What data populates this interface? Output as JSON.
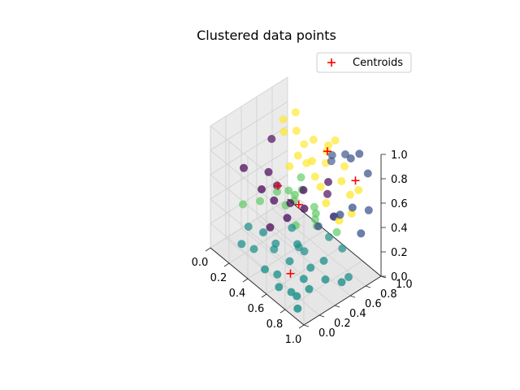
{
  "chart_data": {
    "type": "scatter",
    "dimension": "3d",
    "title": "Clustered data points",
    "xlabel": "",
    "ylabel": "",
    "zlabel": "",
    "xlim": [
      0,
      1
    ],
    "ylim": [
      0,
      1
    ],
    "zlim": [
      0,
      1
    ],
    "x_ticks": [
      "0.0",
      "0.2",
      "0.4",
      "0.6",
      "0.8",
      "1.0"
    ],
    "y_ticks": [
      "0.0",
      "0.2",
      "0.4",
      "0.6",
      "0.8",
      "1.0"
    ],
    "z_ticks": [
      "0.0",
      "0.2",
      "0.4",
      "0.6",
      "0.8",
      "1.0"
    ],
    "grid": true,
    "legend": {
      "placement": "upper right",
      "entries": [
        "Centroids"
      ]
    },
    "colors": {
      "cluster_0": "#440154",
      "cluster_1": "#3b528b",
      "cluster_2": "#21918c",
      "cluster_3": "#5ec962",
      "cluster_4": "#fde725",
      "centroid": "#ff0000"
    },
    "series": [
      {
        "cluster": 0,
        "points": [
          [
            0.15,
            0.25,
            0.65
          ],
          [
            0.2,
            0.55,
            0.8
          ],
          [
            0.25,
            0.45,
            0.6
          ],
          [
            0.3,
            0.3,
            0.55
          ],
          [
            0.35,
            0.4,
            0.45
          ],
          [
            0.4,
            0.55,
            0.4
          ],
          [
            0.45,
            0.45,
            0.35
          ],
          [
            0.35,
            0.35,
            0.25
          ],
          [
            0.5,
            0.6,
            0.55
          ],
          [
            0.55,
            0.55,
            0.45
          ],
          [
            0.6,
            0.8,
            0.6
          ],
          [
            0.3,
            0.5,
            0.5
          ],
          [
            0.55,
            0.85,
            0.45
          ],
          [
            0.7,
            0.75,
            0.4
          ]
        ]
      },
      {
        "cluster": 1,
        "points": [
          [
            0.55,
            0.9,
            0.7
          ],
          [
            0.6,
            0.85,
            0.8
          ],
          [
            0.7,
            0.9,
            0.85
          ],
          [
            0.8,
            0.85,
            0.9
          ],
          [
            0.85,
            0.9,
            0.95
          ],
          [
            0.9,
            0.95,
            0.8
          ],
          [
            0.95,
            0.9,
            0.55
          ],
          [
            0.9,
            0.75,
            0.6
          ],
          [
            0.85,
            0.65,
            0.55
          ],
          [
            0.75,
            0.7,
            0.45
          ],
          [
            0.95,
            0.8,
            0.4
          ],
          [
            0.7,
            0.55,
            0.4
          ]
        ]
      },
      {
        "cluster": 2,
        "points": [
          [
            0.25,
            0.1,
            0.15
          ],
          [
            0.3,
            0.2,
            0.1
          ],
          [
            0.4,
            0.2,
            0.3
          ],
          [
            0.45,
            0.3,
            0.2
          ],
          [
            0.5,
            0.1,
            0.1
          ],
          [
            0.55,
            0.2,
            0.05
          ],
          [
            0.6,
            0.3,
            0.15
          ],
          [
            0.65,
            0.1,
            0.05
          ],
          [
            0.7,
            0.2,
            0.0
          ],
          [
            0.75,
            0.3,
            0.1
          ],
          [
            0.8,
            0.15,
            0.05
          ],
          [
            0.85,
            0.25,
            0.1
          ],
          [
            0.6,
            0.4,
            0.25
          ],
          [
            0.7,
            0.45,
            0.1
          ],
          [
            0.8,
            0.5,
            0.2
          ],
          [
            0.9,
            0.4,
            0.15
          ],
          [
            0.95,
            0.55,
            0.1
          ],
          [
            0.9,
            0.7,
            0.05
          ],
          [
            0.75,
            0.8,
            0.15
          ],
          [
            0.65,
            0.75,
            0.2
          ],
          [
            0.2,
            0.25,
            0.2
          ],
          [
            0.35,
            0.4,
            0.05
          ],
          [
            0.55,
            0.55,
            0.1
          ],
          [
            0.85,
            0.1,
            0.0
          ],
          [
            0.5,
            0.45,
            0.3
          ],
          [
            0.45,
            0.6,
            0.05
          ]
        ]
      },
      {
        "cluster": 3,
        "points": [
          [
            0.1,
            0.3,
            0.3
          ],
          [
            0.2,
            0.4,
            0.35
          ],
          [
            0.3,
            0.5,
            0.45
          ],
          [
            0.35,
            0.55,
            0.35
          ],
          [
            0.4,
            0.6,
            0.4
          ],
          [
            0.45,
            0.55,
            0.5
          ],
          [
            0.5,
            0.5,
            0.3
          ],
          [
            0.3,
            0.65,
            0.4
          ],
          [
            0.4,
            0.7,
            0.45
          ],
          [
            0.55,
            0.7,
            0.35
          ],
          [
            0.6,
            0.65,
            0.3
          ],
          [
            0.5,
            0.75,
            0.25
          ],
          [
            0.45,
            0.8,
            0.3
          ],
          [
            0.65,
            0.85,
            0.2
          ],
          [
            0.35,
            0.75,
            0.5
          ]
        ]
      },
      {
        "cluster": 4,
        "points": [
          [
            0.2,
            0.7,
            0.9
          ],
          [
            0.25,
            0.8,
            0.95
          ],
          [
            0.3,
            0.75,
            0.85
          ],
          [
            0.4,
            0.85,
            0.8
          ],
          [
            0.5,
            0.9,
            0.75
          ],
          [
            0.55,
            0.95,
            0.85
          ],
          [
            0.65,
            0.95,
            0.7
          ],
          [
            0.7,
            0.85,
            0.65
          ],
          [
            0.8,
            0.95,
            0.6
          ],
          [
            0.6,
            0.8,
            0.9
          ],
          [
            0.45,
            0.7,
            0.7
          ],
          [
            0.5,
            0.75,
            0.6
          ],
          [
            0.4,
            0.65,
            0.75
          ],
          [
            0.75,
            0.9,
            0.55
          ],
          [
            0.85,
            0.8,
            0.5
          ],
          [
            0.35,
            0.6,
            0.65
          ],
          [
            0.3,
            0.85,
            0.7
          ],
          [
            0.45,
            0.95,
            0.6
          ],
          [
            0.55,
            0.65,
            0.8
          ],
          [
            0.6,
            0.7,
            0.6
          ],
          [
            0.7,
            0.65,
            0.55
          ],
          [
            0.8,
            0.7,
            0.45
          ],
          [
            0.25,
            0.65,
            0.85
          ]
        ]
      }
    ],
    "centroids": [
      [
        0.35,
        0.45,
        0.55
      ],
      [
        0.85,
        0.85,
        0.75
      ],
      [
        0.65,
        0.25,
        0.1
      ],
      [
        0.45,
        0.6,
        0.4
      ],
      [
        0.55,
        0.85,
        0.8
      ]
    ]
  }
}
